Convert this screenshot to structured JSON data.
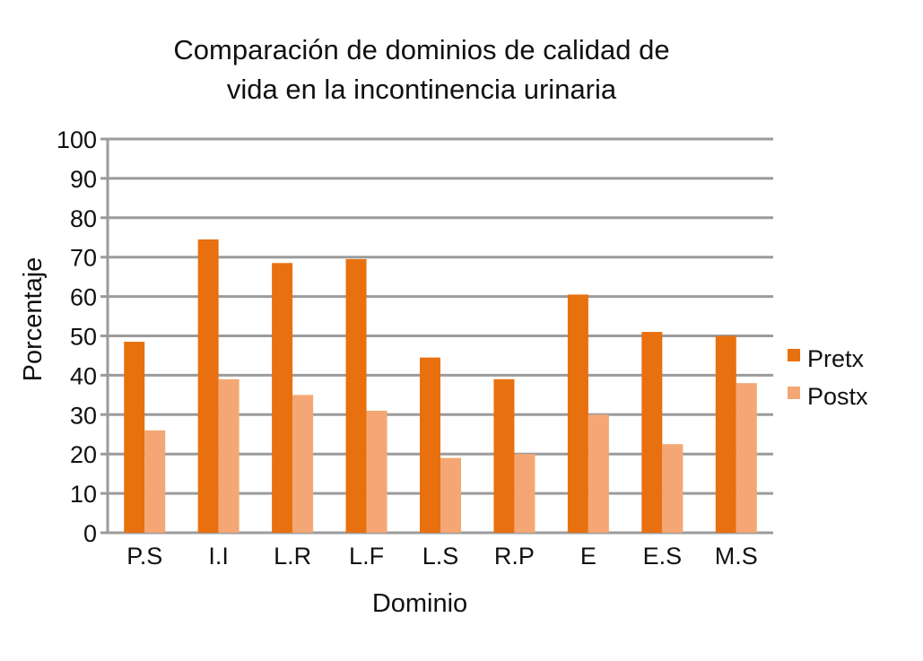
{
  "chart_data": {
    "type": "bar",
    "title_lines": [
      "Comparación de dominios de calidad de",
      "vida en la incontinencia urinaria"
    ],
    "xlabel": "Dominio",
    "ylabel": "Porcentaje",
    "ylim": [
      0,
      100
    ],
    "yticks": [
      0,
      10,
      20,
      30,
      40,
      50,
      60,
      70,
      80,
      90,
      100
    ],
    "grid": true,
    "legend_position": "right",
    "categories": [
      "P.S",
      "I.I",
      "L.R",
      "L.F",
      "L.S",
      "R.P",
      "E",
      "E.S",
      "M.S"
    ],
    "series": [
      {
        "name": "Pretx",
        "color": "#E8700F",
        "values": [
          48.5,
          74.5,
          68.5,
          69.5,
          44.5,
          39,
          60.5,
          51,
          50
        ]
      },
      {
        "name": "Postx",
        "color": "#F4A774",
        "values": [
          26,
          39,
          35,
          31,
          19,
          20,
          30,
          22.5,
          38
        ]
      }
    ],
    "gridline_color": "#9b9b9b"
  }
}
